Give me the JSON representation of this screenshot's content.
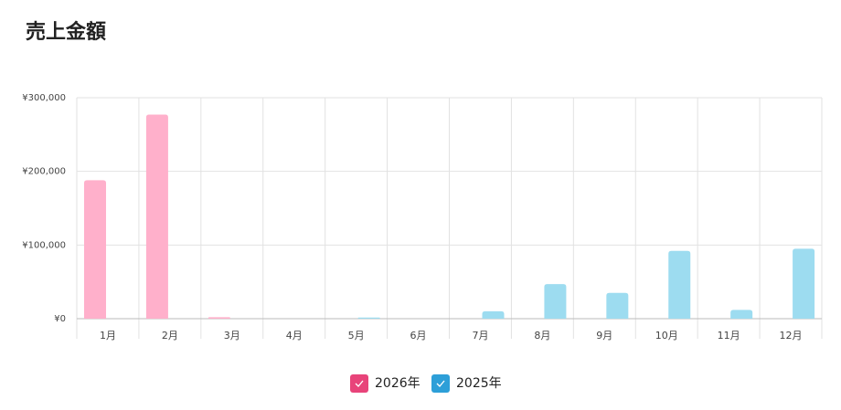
{
  "chart_data": {
    "type": "bar",
    "title": "売上金額",
    "categories": [
      "1月",
      "2月",
      "3月",
      "4月",
      "5月",
      "6月",
      "7月",
      "8月",
      "9月",
      "10月",
      "11月",
      "12月"
    ],
    "series": [
      {
        "name": "2026年",
        "color": "#ffb0cb",
        "legend_color": "#e8447a",
        "values": [
          188000,
          277000,
          2000,
          0,
          0,
          0,
          0,
          0,
          0,
          0,
          0,
          0
        ]
      },
      {
        "name": "2025年",
        "color": "#9ddcf0",
        "legend_color": "#2d9fd8",
        "values": [
          0,
          0,
          0,
          0,
          1500,
          0,
          10000,
          47000,
          35000,
          92000,
          12000,
          95000
        ]
      }
    ],
    "ylim": [
      0,
      300000
    ],
    "yticks": [
      {
        "value": 0,
        "label": "¥0"
      },
      {
        "value": 100000,
        "label": "¥100,000"
      },
      {
        "value": 200000,
        "label": "¥200,000"
      },
      {
        "value": 300000,
        "label": "¥300,000"
      }
    ],
    "grid": true
  }
}
